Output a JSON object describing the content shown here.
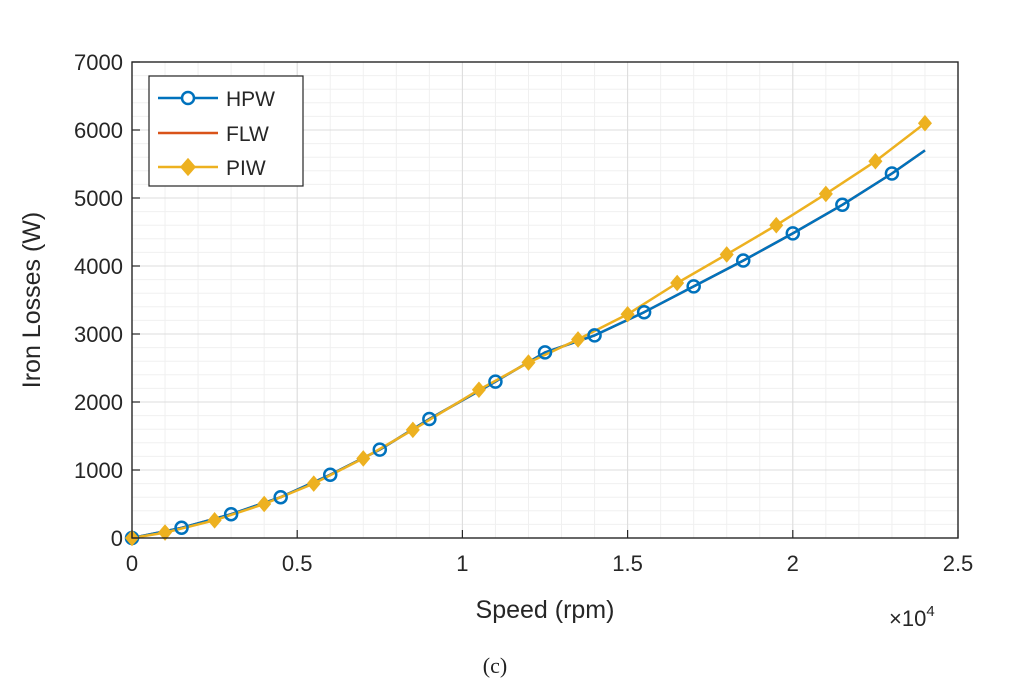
{
  "chart_data": {
    "type": "line",
    "xlabel": "Speed (rpm)",
    "ylabel": "Iron Losses (W)",
    "x_multiplier_label": "×10",
    "x_multiplier_exponent": "4",
    "caption": "(c)",
    "xlim": [
      0,
      2.5
    ],
    "ylim": [
      0,
      7000
    ],
    "xticks": [
      0,
      0.5,
      1,
      1.5,
      2,
      2.5
    ],
    "xtick_labels": [
      "0",
      "0.5",
      "1",
      "1.5",
      "2",
      "2.5"
    ],
    "yticks": [
      0,
      1000,
      2000,
      3000,
      4000,
      5000,
      6000,
      7000
    ],
    "ytick_labels": [
      "0",
      "1000",
      "2000",
      "3000",
      "4000",
      "5000",
      "6000",
      "7000"
    ],
    "grid": true,
    "legend_position": "top-left",
    "series": [
      {
        "name": "HPW",
        "color": "#0072BD",
        "marker": "circle",
        "x": [
          0,
          0.15,
          0.3,
          0.45,
          0.6,
          0.75,
          0.9,
          1.1,
          1.25,
          1.4,
          1.55,
          1.7,
          1.85,
          2.0,
          2.15,
          2.3,
          2.4
        ],
        "y": [
          0,
          150,
          350,
          600,
          930,
          1300,
          1750,
          2300,
          2730,
          2980,
          3320,
          3700,
          4080,
          4480,
          4900,
          5360,
          5700
        ],
        "marker_x": [
          0,
          0.15,
          0.3,
          0.45,
          0.6,
          0.75,
          0.9,
          1.1,
          1.25,
          1.4,
          1.55,
          1.7,
          1.85,
          2.0,
          2.15,
          2.3
        ],
        "marker_y": [
          0,
          150,
          350,
          600,
          930,
          1300,
          1750,
          2300,
          2730,
          2980,
          3320,
          3700,
          4080,
          4480,
          4900,
          5360
        ]
      },
      {
        "name": "FLW",
        "color": "#D95319",
        "marker": "none",
        "x": [
          0,
          0.15,
          0.3,
          0.45,
          0.6,
          0.75,
          0.9,
          1.1,
          1.25,
          1.4,
          1.55,
          1.7,
          1.85,
          2.0,
          2.15,
          2.3,
          2.4
        ],
        "y": [
          0,
          150,
          350,
          600,
          930,
          1300,
          1750,
          2300,
          2730,
          2980,
          3320,
          3700,
          4080,
          4480,
          4900,
          5360,
          5700
        ]
      },
      {
        "name": "PIW",
        "color": "#EDB120",
        "marker": "diamond",
        "x": [
          0,
          0.1,
          0.25,
          0.4,
          0.55,
          0.7,
          0.85,
          1.05,
          1.2,
          1.35,
          1.5,
          1.65,
          1.8,
          1.95,
          2.1,
          2.25,
          2.4
        ],
        "y": [
          0,
          80,
          260,
          500,
          800,
          1170,
          1590,
          2180,
          2580,
          2920,
          3290,
          3750,
          4170,
          4600,
          5060,
          5540,
          6100
        ]
      }
    ]
  }
}
